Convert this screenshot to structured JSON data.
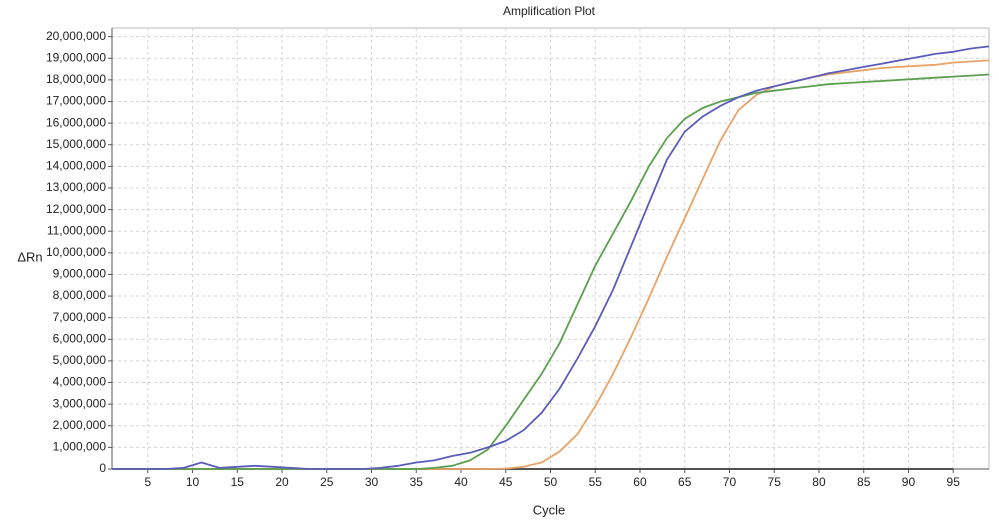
{
  "chart_data": {
    "type": "line",
    "title": "Amplification Plot",
    "x_label": "Cycle",
    "y_label": "ΔRn",
    "x": [
      1,
      3,
      5,
      7,
      9,
      11,
      13,
      15,
      17,
      19,
      21,
      23,
      25,
      27,
      29,
      31,
      33,
      35,
      37,
      39,
      41,
      43,
      45,
      47,
      49,
      51,
      53,
      55,
      57,
      59,
      61,
      63,
      65,
      67,
      69,
      71,
      73,
      75,
      77,
      79,
      81,
      83,
      85,
      87,
      89,
      91,
      93,
      95,
      97,
      99
    ],
    "xlim": [
      1,
      99
    ],
    "xticks": [
      5,
      10,
      15,
      20,
      25,
      30,
      35,
      40,
      45,
      50,
      55,
      60,
      65,
      70,
      75,
      80,
      85,
      90,
      95
    ],
    "ylim": [
      0,
      20400000
    ],
    "yticks": [
      0,
      {
        "value": 1000000,
        "label": "1,000,000"
      },
      {
        "value": 2000000,
        "label": "2,000,000"
      },
      {
        "value": 3000000,
        "label": "3,000,000"
      },
      {
        "value": 4000000,
        "label": "4,000,000"
      },
      {
        "value": 5000000,
        "label": "5,000,000"
      },
      {
        "value": 6000000,
        "label": "6,000,000"
      },
      {
        "value": 7000000,
        "label": "7,000,000"
      },
      {
        "value": 8000000,
        "label": "8,000,000"
      },
      {
        "value": 9000000,
        "label": "9,000,000"
      },
      {
        "value": 10000000,
        "label": "10,000,000"
      },
      {
        "value": 11000000,
        "label": "11,000,000"
      },
      {
        "value": 12000000,
        "label": "12,000,000"
      },
      {
        "value": 13000000,
        "label": "13,000,000"
      },
      {
        "value": 14000000,
        "label": "14,000,000"
      },
      {
        "value": 15000000,
        "label": "15,000,000"
      },
      {
        "value": 16000000,
        "label": "16,000,000"
      },
      {
        "value": 17000000,
        "label": "17,000,000"
      },
      {
        "value": 18000000,
        "label": "18,000,000"
      },
      {
        "value": 19000000,
        "label": "19,000,000"
      },
      {
        "value": 20000000,
        "label": "20,000,000"
      }
    ],
    "grid": true,
    "series": [
      {
        "color": "#3a3a3a",
        "values": [
          0,
          0,
          0,
          0,
          0,
          0,
          0,
          0,
          0,
          0,
          0,
          0,
          0,
          0,
          0,
          0,
          0,
          0,
          0,
          0,
          0,
          0,
          0,
          0,
          0,
          0,
          0,
          0,
          0,
          0,
          0,
          0,
          0,
          0,
          0,
          0,
          0,
          0,
          0,
          0,
          0,
          0,
          0,
          0,
          0,
          0,
          0,
          0,
          null,
          null
        ]
      },
      {
        "color": "#e8a368",
        "values": [
          0,
          0,
          0,
          0,
          0,
          0,
          0,
          0,
          0,
          0,
          0,
          0,
          0,
          0,
          0,
          0,
          0,
          0,
          0,
          0,
          0,
          0,
          20000,
          100000,
          300000,
          800000,
          1600000,
          2900000,
          4400000,
          6100000,
          7900000,
          9800000,
          11600000,
          13400000,
          15200000,
          16600000,
          17300000,
          17700000,
          17900000,
          18100000,
          18250000,
          18350000,
          18450000,
          18550000,
          18600000,
          18650000,
          18700000,
          18800000,
          18850000,
          18900000
        ]
      },
      {
        "color": "#5aa04e",
        "values": [
          0,
          0,
          0,
          0,
          0,
          0,
          0,
          0,
          0,
          0,
          0,
          0,
          0,
          0,
          0,
          0,
          0,
          0,
          50000,
          150000,
          400000,
          900000,
          2000000,
          3200000,
          4400000,
          5800000,
          7600000,
          9400000,
          10900000,
          12400000,
          14000000,
          15300000,
          16200000,
          16700000,
          17000000,
          17200000,
          17400000,
          17500000,
          17600000,
          17700000,
          17800000,
          17850000,
          17900000,
          17950000,
          18000000,
          18050000,
          18100000,
          18150000,
          18200000,
          18250000
        ]
      },
      {
        "color": "#5b5cbc",
        "values": [
          0,
          0,
          0,
          0,
          50000,
          300000,
          50000,
          100000,
          150000,
          100000,
          50000,
          0,
          0,
          0,
          0,
          50000,
          150000,
          300000,
          400000,
          600000,
          750000,
          1000000,
          1300000,
          1800000,
          2600000,
          3700000,
          5100000,
          6600000,
          8300000,
          10300000,
          12300000,
          14300000,
          15600000,
          16300000,
          16800000,
          17200000,
          17500000,
          17700000,
          17900000,
          18100000,
          18300000,
          18450000,
          18600000,
          18750000,
          18900000,
          19050000,
          19200000,
          19300000,
          19450000,
          19550000
        ]
      }
    ]
  }
}
